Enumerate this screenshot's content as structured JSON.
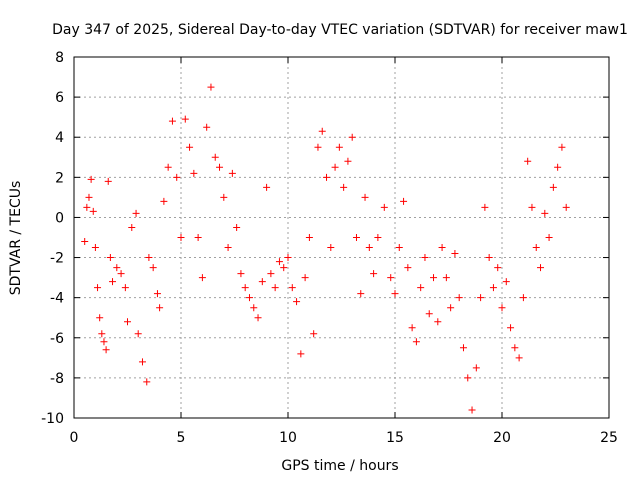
{
  "chart_data": {
    "type": "scatter",
    "title": "Day 347 of 2025, Sidereal Day-to-day VTEC variation (SDTVAR) for receiver maw1",
    "xlabel": "GPS time / hours",
    "ylabel": "SDTVAR / TECUs",
    "xlim": [
      0,
      25
    ],
    "ylim": [
      -10,
      8
    ],
    "xticks": [
      0,
      5,
      10,
      15,
      20,
      25
    ],
    "yticks": [
      -10,
      -8,
      -6,
      -4,
      -2,
      0,
      2,
      4,
      6,
      8
    ],
    "grid": true,
    "marker": "+",
    "series_color": "#ff0000",
    "series": [
      {
        "name": "SDTVAR",
        "points": [
          [
            0.5,
            -1.2
          ],
          [
            0.6,
            0.5
          ],
          [
            0.7,
            1.0
          ],
          [
            0.8,
            1.9
          ],
          [
            0.9,
            0.3
          ],
          [
            1.0,
            -1.5
          ],
          [
            1.1,
            -3.5
          ],
          [
            1.2,
            -5.0
          ],
          [
            1.3,
            -5.8
          ],
          [
            1.4,
            -6.2
          ],
          [
            1.5,
            -6.6
          ],
          [
            1.6,
            1.8
          ],
          [
            1.7,
            -2.0
          ],
          [
            1.8,
            -3.2
          ],
          [
            2.0,
            -2.5
          ],
          [
            2.2,
            -2.8
          ],
          [
            2.4,
            -3.5
          ],
          [
            2.5,
            -5.2
          ],
          [
            2.7,
            -0.5
          ],
          [
            2.9,
            0.2
          ],
          [
            3.0,
            -5.8
          ],
          [
            3.2,
            -7.2
          ],
          [
            3.4,
            -8.2
          ],
          [
            3.5,
            -2.0
          ],
          [
            3.7,
            -2.5
          ],
          [
            3.9,
            -3.8
          ],
          [
            4.0,
            -4.5
          ],
          [
            4.2,
            0.8
          ],
          [
            4.4,
            2.5
          ],
          [
            4.6,
            4.8
          ],
          [
            4.8,
            2.0
          ],
          [
            5.0,
            -1.0
          ],
          [
            5.2,
            4.9
          ],
          [
            5.4,
            3.5
          ],
          [
            5.6,
            2.2
          ],
          [
            5.8,
            -1.0
          ],
          [
            6.0,
            -3.0
          ],
          [
            6.2,
            4.5
          ],
          [
            6.4,
            6.5
          ],
          [
            6.6,
            3.0
          ],
          [
            6.8,
            2.5
          ],
          [
            7.0,
            1.0
          ],
          [
            7.2,
            -1.5
          ],
          [
            7.4,
            2.2
          ],
          [
            7.6,
            -0.5
          ],
          [
            7.8,
            -2.8
          ],
          [
            8.0,
            -3.5
          ],
          [
            8.2,
            -4.0
          ],
          [
            8.4,
            -4.5
          ],
          [
            8.6,
            -5.0
          ],
          [
            8.8,
            -3.2
          ],
          [
            9.0,
            1.5
          ],
          [
            9.2,
            -2.8
          ],
          [
            9.4,
            -3.5
          ],
          [
            9.6,
            -2.2
          ],
          [
            9.8,
            -2.5
          ],
          [
            10.0,
            -2.0
          ],
          [
            10.2,
            -3.5
          ],
          [
            10.4,
            -4.2
          ],
          [
            10.6,
            -6.8
          ],
          [
            10.8,
            -3.0
          ],
          [
            11.0,
            -1.0
          ],
          [
            11.2,
            -5.8
          ],
          [
            11.4,
            3.5
          ],
          [
            11.6,
            4.3
          ],
          [
            11.8,
            2.0
          ],
          [
            12.0,
            -1.5
          ],
          [
            12.2,
            2.5
          ],
          [
            12.4,
            3.5
          ],
          [
            12.6,
            1.5
          ],
          [
            12.8,
            2.8
          ],
          [
            13.0,
            4.0
          ],
          [
            13.2,
            -1.0
          ],
          [
            13.4,
            -3.8
          ],
          [
            13.6,
            1.0
          ],
          [
            13.8,
            -1.5
          ],
          [
            14.0,
            -2.8
          ],
          [
            14.2,
            -1.0
          ],
          [
            14.5,
            0.5
          ],
          [
            14.8,
            -3.0
          ],
          [
            15.0,
            -3.8
          ],
          [
            15.2,
            -1.5
          ],
          [
            15.4,
            0.8
          ],
          [
            15.6,
            -2.5
          ],
          [
            15.8,
            -5.5
          ],
          [
            16.0,
            -6.2
          ],
          [
            16.2,
            -3.5
          ],
          [
            16.4,
            -2.0
          ],
          [
            16.6,
            -4.8
          ],
          [
            16.8,
            -3.0
          ],
          [
            17.0,
            -5.2
          ],
          [
            17.2,
            -1.5
          ],
          [
            17.4,
            -3.0
          ],
          [
            17.6,
            -4.5
          ],
          [
            17.8,
            -1.8
          ],
          [
            18.0,
            -4.0
          ],
          [
            18.2,
            -6.5
          ],
          [
            18.4,
            -8.0
          ],
          [
            18.6,
            -9.6
          ],
          [
            18.8,
            -7.5
          ],
          [
            19.0,
            -4.0
          ],
          [
            19.2,
            0.5
          ],
          [
            19.4,
            -2.0
          ],
          [
            19.6,
            -3.5
          ],
          [
            19.8,
            -2.5
          ],
          [
            20.0,
            -4.5
          ],
          [
            20.2,
            -3.2
          ],
          [
            20.4,
            -5.5
          ],
          [
            20.6,
            -6.5
          ],
          [
            20.8,
            -7.0
          ],
          [
            21.0,
            -4.0
          ],
          [
            21.2,
            2.8
          ],
          [
            21.4,
            0.5
          ],
          [
            21.6,
            -1.5
          ],
          [
            21.8,
            -2.5
          ],
          [
            22.0,
            0.2
          ],
          [
            22.2,
            -1.0
          ],
          [
            22.4,
            1.5
          ],
          [
            22.6,
            2.5
          ],
          [
            22.8,
            3.5
          ],
          [
            23.0,
            0.5
          ]
        ]
      }
    ]
  }
}
